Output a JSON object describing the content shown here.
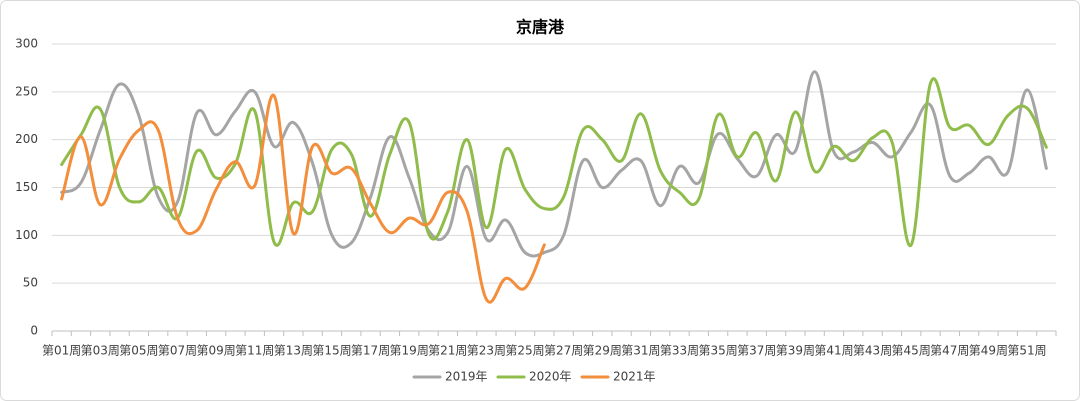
{
  "chart_data": {
    "type": "line",
    "title": "京唐港",
    "categories": [
      "第01周",
      null,
      "第03周",
      null,
      "第05周",
      null,
      "第07周",
      null,
      "第09周",
      null,
      "第11周",
      null,
      "第13周",
      null,
      "第15周",
      null,
      "第17周",
      null,
      "第19周",
      null,
      "第21周",
      null,
      "第23周",
      null,
      "第25周",
      null,
      "第27周",
      null,
      "第29周",
      null,
      "第31周",
      null,
      "第33周",
      null,
      "第35周",
      null,
      "第37周",
      null,
      "第39周",
      null,
      "第41周",
      null,
      "第43周",
      null,
      "第45周",
      null,
      "第47周",
      null,
      "第49周",
      null,
      "第51周",
      null
    ],
    "series": [
      {
        "name": "2019年",
        "color": "#a5a5a5",
        "values": [
          145,
          155,
          210,
          258,
          225,
          140,
          135,
          228,
          205,
          230,
          250,
          193,
          218,
          175,
          100,
          92,
          140,
          203,
          160,
          105,
          103,
          172,
          96,
          116,
          82,
          82,
          100,
          178,
          150,
          168,
          178,
          131,
          172,
          155,
          206,
          180,
          162,
          205,
          188,
          271,
          187,
          187,
          197,
          182,
          208,
          236,
          162,
          165,
          182,
          166,
          252,
          170
        ]
      },
      {
        "name": "2020年",
        "color": "#8fbc4a",
        "values": [
          174,
          205,
          232,
          150,
          135,
          150,
          118,
          188,
          160,
          175,
          230,
          93,
          134,
          125,
          190,
          185,
          120,
          185,
          218,
          102,
          125,
          200,
          108,
          190,
          148,
          128,
          140,
          210,
          200,
          178,
          227,
          168,
          145,
          138,
          226,
          182,
          207,
          157,
          229,
          167,
          193,
          178,
          202,
          198,
          90,
          259,
          213,
          215,
          195,
          225,
          233,
          192
        ]
      },
      {
        "name": "2021年",
        "color": "#f28e3c",
        "values": [
          138,
          203,
          132,
          180,
          210,
          210,
          118,
          105,
          148,
          177,
          152,
          246,
          102,
          193,
          165,
          170,
          133,
          103,
          118,
          112,
          145,
          125,
          33,
          55,
          45,
          90,
          null,
          null,
          null,
          null,
          null,
          null,
          null,
          null,
          null,
          null,
          null,
          null,
          null,
          null,
          null,
          null,
          null,
          null,
          null,
          null,
          null,
          null,
          null,
          null,
          null,
          null
        ]
      }
    ],
    "ylim": [
      0,
      300
    ],
    "yticks": [
      0,
      50,
      100,
      150,
      200,
      250,
      300
    ],
    "grid": true,
    "legend": "bottom"
  }
}
